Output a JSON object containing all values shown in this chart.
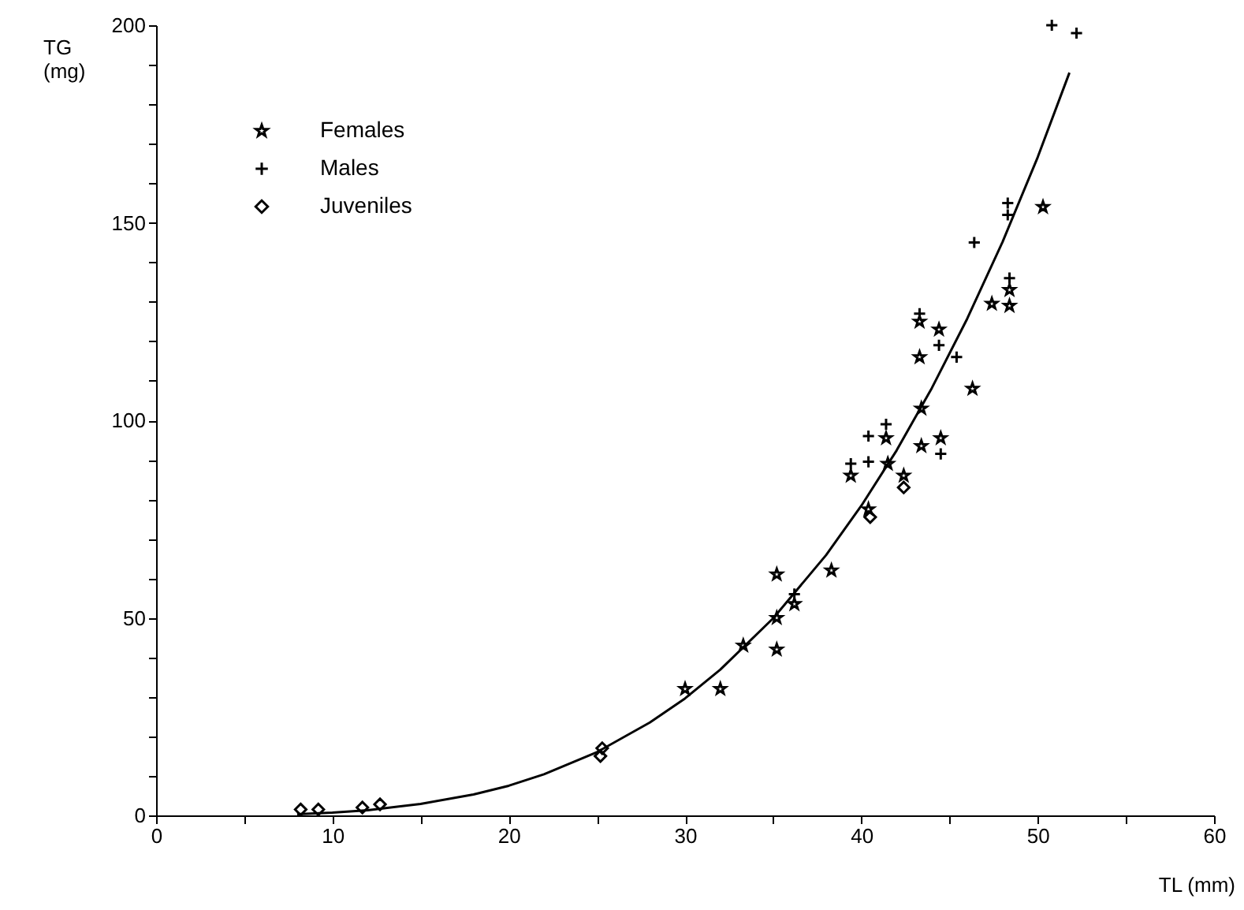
{
  "chart_data": {
    "type": "scatter",
    "xlabel": "TL (mm)",
    "ylabel": "TG\n(mg)",
    "xlim": [
      0,
      60
    ],
    "ylim": [
      0,
      200
    ],
    "xticks": [
      0,
      {
        "value": 5,
        "label": null
      },
      10,
      {
        "value": 15,
        "label": null
      },
      20,
      {
        "value": 25,
        "label": null
      },
      30,
      {
        "value": 35,
        "label": null
      },
      40,
      {
        "value": 45,
        "label": null
      },
      50,
      {
        "value": 55,
        "label": null
      },
      60
    ],
    "yticks": [
      0,
      {
        "value": 10,
        "label": null
      },
      {
        "value": 20,
        "label": null
      },
      {
        "value": 30,
        "label": null
      },
      {
        "value": 40,
        "label": null
      },
      50,
      {
        "value": 60,
        "label": null
      },
      {
        "value": 70,
        "label": null
      },
      {
        "value": 80,
        "label": null
      },
      {
        "value": 90,
        "label": null
      },
      100,
      {
        "value": 110,
        "label": null
      },
      {
        "value": 120,
        "label": null
      },
      {
        "value": 130,
        "label": null
      },
      {
        "value": 140,
        "label": null
      },
      150,
      {
        "value": 160,
        "label": null
      },
      {
        "value": 170,
        "label": null
      },
      {
        "value": 180,
        "label": null
      },
      {
        "value": 190,
        "label": null
      },
      200
    ],
    "grid": false,
    "legend": "top left",
    "series": [
      {
        "name": "Females",
        "marker": "star",
        "color": "#000000",
        "x": [
          30,
          32,
          33.3,
          35.2,
          35.2,
          35.2,
          36.2,
          38.3,
          39.4,
          40.4,
          41.5,
          41.4,
          42.4,
          43.4,
          43.4,
          44.5,
          46.3,
          43.3,
          43.3,
          44.4,
          47.4,
          48.4,
          48.4,
          50.3
        ],
        "values": [
          32,
          32,
          43,
          61,
          50,
          42,
          53.5,
          62,
          86,
          77.5,
          89,
          95.5,
          86,
          103,
          93.5,
          95.5,
          108,
          125,
          116,
          123,
          129.5,
          133,
          129,
          154
        ]
      },
      {
        "name": "Males",
        "marker": "cross",
        "color": "#000000",
        "x": [
          36.2,
          39.4,
          40.4,
          40.4,
          41.4,
          43.3,
          44.4,
          44.5,
          45.4,
          46.4,
          48.3,
          48.3,
          48.4,
          50.8,
          52.2
        ],
        "values": [
          56,
          89,
          89.5,
          96,
          99,
          127,
          119,
          91.5,
          116,
          145,
          155,
          152,
          136,
          200,
          198
        ]
      },
      {
        "name": "Juveniles",
        "marker": "diamond",
        "color": "#000000",
        "x": [
          8.2,
          9.2,
          11.7,
          12.7,
          25.3,
          25.2,
          40.5,
          42.4
        ],
        "values": [
          1.5,
          1.5,
          2,
          2.8,
          17,
          15,
          75.5,
          83
        ]
      },
      {
        "type": "line",
        "color": "#000000",
        "marker": "none",
        "x": [
          8,
          10,
          12,
          15,
          18,
          20,
          22,
          25,
          28,
          30,
          32,
          35,
          38,
          40,
          42,
          44,
          46,
          48,
          50,
          51.8
        ],
        "values": [
          0.3,
          0.7,
          1.3,
          2.9,
          5.3,
          7.5,
          10.4,
          16,
          23.5,
          29.6,
          36.9,
          49.9,
          65.9,
          78.4,
          92.4,
          108.2,
          125.7,
          145.1,
          166.6,
          188
        ]
      }
    ]
  }
}
